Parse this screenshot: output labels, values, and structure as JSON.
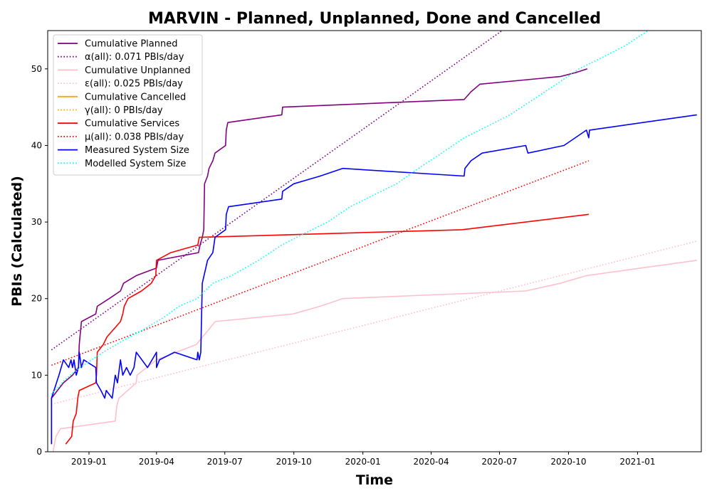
{
  "chart_data": {
    "type": "line",
    "title": "MARVIN - Planned, Unplanned, Done  and Cancelled",
    "xlabel": "Time",
    "ylabel": "PBIs (Calculated)",
    "xlim": [
      "2018-11-07",
      "2021-03-27"
    ],
    "ylim": [
      0,
      55
    ],
    "x_ticks": [
      {
        "date": "2019-01-01",
        "label": "2019-01"
      },
      {
        "date": "2019-04-01",
        "label": "2019-04"
      },
      {
        "date": "2019-07-01",
        "label": "2019-07"
      },
      {
        "date": "2019-10-01",
        "label": "2019-10"
      },
      {
        "date": "2020-01-01",
        "label": "2020-01"
      },
      {
        "date": "2020-04-01",
        "label": "2020-04"
      },
      {
        "date": "2020-07-01",
        "label": "2020-07"
      },
      {
        "date": "2020-10-01",
        "label": "2020-10"
      },
      {
        "date": "2021-01-01",
        "label": "2021-01"
      }
    ],
    "y_ticks": [
      0,
      10,
      20,
      30,
      40,
      50
    ],
    "grid": false,
    "legend_position": "top-left",
    "series": [
      {
        "name": "Cumulative Planned",
        "color": "#800080",
        "style": "solid",
        "points": [
          [
            "2018-11-12",
            1
          ],
          [
            "2018-11-12",
            7
          ],
          [
            "2018-11-20",
            8
          ],
          [
            "2018-11-28",
            9
          ],
          [
            "2018-12-10",
            10
          ],
          [
            "2018-12-18",
            11
          ],
          [
            "2018-12-19",
            14
          ],
          [
            "2018-12-20",
            15
          ],
          [
            "2018-12-22",
            17
          ],
          [
            "2019-01-10",
            18
          ],
          [
            "2019-01-12",
            19
          ],
          [
            "2019-01-28",
            20
          ],
          [
            "2019-02-12",
            21
          ],
          [
            "2019-02-16",
            22
          ],
          [
            "2019-03-05",
            23
          ],
          [
            "2019-04-01",
            24
          ],
          [
            "2019-04-03",
            25
          ],
          [
            "2019-05-27",
            26
          ],
          [
            "2019-05-29",
            27
          ],
          [
            "2019-06-01",
            28
          ],
          [
            "2019-06-03",
            29
          ],
          [
            "2019-06-04",
            35
          ],
          [
            "2019-06-08",
            36
          ],
          [
            "2019-06-10",
            37
          ],
          [
            "2019-06-15",
            38
          ],
          [
            "2019-06-18",
            39
          ],
          [
            "2019-07-02",
            40
          ],
          [
            "2019-07-03",
            42
          ],
          [
            "2019-07-05",
            43
          ],
          [
            "2019-09-15",
            44
          ],
          [
            "2019-09-16",
            45
          ],
          [
            "2020-05-15",
            46
          ],
          [
            "2020-05-24",
            47
          ],
          [
            "2020-06-05",
            48
          ],
          [
            "2020-09-20",
            49
          ],
          [
            "2020-10-10",
            49.5
          ],
          [
            "2020-10-26",
            50
          ]
        ]
      },
      {
        "name": "α(all): 0.071 PBIs/day",
        "color": "#800080",
        "style": "dotted",
        "points": [
          [
            "2018-11-12",
            13.3
          ],
          [
            "2021-01-15",
            68.5
          ]
        ]
      },
      {
        "name": "Cumulative Unplanned",
        "color": "#ffc0cb",
        "style": "solid",
        "points": [
          [
            "2018-11-14",
            0
          ],
          [
            "2018-11-18",
            2
          ],
          [
            "2018-11-24",
            3
          ],
          [
            "2019-02-05",
            4
          ],
          [
            "2019-02-07",
            6
          ],
          [
            "2019-02-10",
            7
          ],
          [
            "2019-03-05",
            9
          ],
          [
            "2019-03-06",
            10
          ],
          [
            "2019-04-01",
            12
          ],
          [
            "2019-05-24",
            14
          ],
          [
            "2019-06-10",
            16
          ],
          [
            "2019-06-18",
            17
          ],
          [
            "2019-09-30",
            18
          ],
          [
            "2019-11-05",
            19
          ],
          [
            "2019-12-05",
            20
          ],
          [
            "2020-08-05",
            21
          ],
          [
            "2020-09-20",
            22
          ],
          [
            "2020-10-25",
            23
          ],
          [
            "2021-03-21",
            25
          ]
        ]
      },
      {
        "name": "ε(all): 0.025 PBIs/day",
        "color": "#ffc0cb",
        "style": "dotted",
        "points": [
          [
            "2018-11-12",
            6.2
          ],
          [
            "2021-03-21",
            27.5
          ]
        ]
      },
      {
        "name": "Cumulative Cancelled",
        "color": "#ffa500",
        "style": "solid",
        "points": []
      },
      {
        "name": "γ(all): 0 PBIs/day",
        "color": "#ffa500",
        "style": "dotted",
        "points": []
      },
      {
        "name": "Cumulative Services",
        "color": "#ff0000",
        "style": "solid",
        "points": [
          [
            "2018-12-01",
            1
          ],
          [
            "2018-12-09",
            2
          ],
          [
            "2018-12-11",
            4
          ],
          [
            "2018-12-15",
            5
          ],
          [
            "2018-12-17",
            7
          ],
          [
            "2018-12-19",
            8
          ],
          [
            "2019-01-10",
            9
          ],
          [
            "2019-01-11",
            10
          ],
          [
            "2019-01-12",
            13
          ],
          [
            "2019-01-20",
            14
          ],
          [
            "2019-01-25",
            15
          ],
          [
            "2019-02-12",
            17
          ],
          [
            "2019-02-15",
            18
          ],
          [
            "2019-02-17",
            19
          ],
          [
            "2019-02-22",
            20
          ],
          [
            "2019-03-12",
            21
          ],
          [
            "2019-03-25",
            22
          ],
          [
            "2019-03-31",
            23
          ],
          [
            "2019-04-01",
            25
          ],
          [
            "2019-04-20",
            26
          ],
          [
            "2019-05-26",
            27
          ],
          [
            "2019-05-28",
            28
          ],
          [
            "2020-05-12",
            29
          ],
          [
            "2020-10-28",
            31
          ]
        ]
      },
      {
        "name": "μ(all): 0.038 PBIs/day",
        "color": "#ff0000",
        "style": "dotted",
        "points": [
          [
            "2018-11-12",
            11.3
          ],
          [
            "2020-10-28",
            38
          ]
        ]
      },
      {
        "name": "Measured System Size",
        "color": "#0000ff",
        "style": "solid",
        "points": [
          [
            "2018-11-12",
            1
          ],
          [
            "2018-11-12",
            7
          ],
          [
            "2018-11-22",
            10
          ],
          [
            "2018-11-28",
            12
          ],
          [
            "2018-12-05",
            11
          ],
          [
            "2018-12-08",
            12
          ],
          [
            "2018-12-10",
            11
          ],
          [
            "2018-12-12",
            12
          ],
          [
            "2018-12-15",
            10
          ],
          [
            "2018-12-18",
            11
          ],
          [
            "2018-12-19",
            13
          ],
          [
            "2018-12-22",
            11
          ],
          [
            "2018-12-25",
            12
          ],
          [
            "2019-01-10",
            11
          ],
          [
            "2019-01-11",
            9
          ],
          [
            "2019-01-17",
            8
          ],
          [
            "2019-01-22",
            7
          ],
          [
            "2019-01-24",
            8
          ],
          [
            "2019-02-01",
            7
          ],
          [
            "2019-02-05",
            10
          ],
          [
            "2019-02-08",
            9
          ],
          [
            "2019-02-12",
            12
          ],
          [
            "2019-02-15",
            10
          ],
          [
            "2019-02-20",
            11
          ],
          [
            "2019-02-25",
            10
          ],
          [
            "2019-03-02",
            11
          ],
          [
            "2019-03-05",
            13
          ],
          [
            "2019-03-20",
            11
          ],
          [
            "2019-04-01",
            13
          ],
          [
            "2019-04-01",
            11
          ],
          [
            "2019-04-05",
            12
          ],
          [
            "2019-04-25",
            13
          ],
          [
            "2019-05-25",
            12
          ],
          [
            "2019-05-26",
            13
          ],
          [
            "2019-05-28",
            12
          ],
          [
            "2019-05-30",
            13
          ],
          [
            "2019-06-01",
            22
          ],
          [
            "2019-06-08",
            25
          ],
          [
            "2019-06-15",
            26
          ],
          [
            "2019-06-18",
            28
          ],
          [
            "2019-07-02",
            29
          ],
          [
            "2019-07-03",
            31
          ],
          [
            "2019-07-06",
            32
          ],
          [
            "2019-09-15",
            33
          ],
          [
            "2019-09-16",
            34
          ],
          [
            "2019-10-01",
            35
          ],
          [
            "2019-11-05",
            36
          ],
          [
            "2019-12-05",
            37
          ],
          [
            "2020-05-15",
            36
          ],
          [
            "2020-05-16",
            37
          ],
          [
            "2020-05-24",
            38
          ],
          [
            "2020-06-08",
            39
          ],
          [
            "2020-08-05",
            40
          ],
          [
            "2020-08-08",
            39
          ],
          [
            "2020-09-25",
            40
          ],
          [
            "2020-10-25",
            42
          ],
          [
            "2020-10-28",
            41
          ],
          [
            "2020-10-29",
            42
          ],
          [
            "2021-03-21",
            44
          ]
        ]
      },
      {
        "name": "Modelled System Size",
        "color": "#00ffff",
        "style": "dotted",
        "points": [
          [
            "2018-11-12",
            7.5
          ],
          [
            "2018-12-01",
            9.5
          ],
          [
            "2018-12-20",
            11
          ],
          [
            "2019-01-20",
            13
          ],
          [
            "2019-02-15",
            14.5
          ],
          [
            "2019-03-15",
            16
          ],
          [
            "2019-04-10",
            17.5
          ],
          [
            "2019-05-01",
            19
          ],
          [
            "2019-05-25",
            20
          ],
          [
            "2019-06-15",
            22
          ],
          [
            "2019-07-10",
            23
          ],
          [
            "2019-08-15",
            25
          ],
          [
            "2019-09-15",
            27
          ],
          [
            "2019-10-15",
            28.5
          ],
          [
            "2019-11-15",
            30
          ],
          [
            "2019-12-15",
            32
          ],
          [
            "2020-01-15",
            33.5
          ],
          [
            "2020-02-15",
            35
          ],
          [
            "2020-03-15",
            37
          ],
          [
            "2020-04-15",
            39
          ],
          [
            "2020-05-15",
            41
          ],
          [
            "2020-06-15",
            42.5
          ],
          [
            "2020-07-15",
            44
          ],
          [
            "2020-08-15",
            46
          ],
          [
            "2020-09-15",
            48
          ],
          [
            "2020-10-15",
            50
          ],
          [
            "2020-11-15",
            51.5
          ],
          [
            "2020-12-15",
            53
          ],
          [
            "2021-01-15",
            55
          ],
          [
            "2021-02-01",
            56
          ]
        ]
      }
    ]
  }
}
